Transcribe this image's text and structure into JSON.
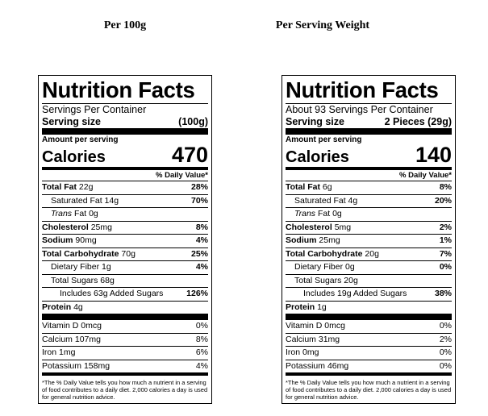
{
  "labels": [
    {
      "heading": "Per 100g",
      "title": "Nutrition Facts",
      "servings": "Servings Per Container",
      "serving_size_label": "Serving size",
      "serving_size": "(100g)",
      "amount_per_serving": "Amount per serving",
      "calories_label": "Calories",
      "calories": "470",
      "dv_header": "% Daily Value*",
      "rows": [
        {
          "name": "Total Fat",
          "amount": "22g",
          "dv": "28%",
          "bold": true,
          "indent": 0
        },
        {
          "name": "Saturated Fat",
          "amount": "14g",
          "dv": "70%",
          "bold": false,
          "indent": 1
        },
        {
          "prefix": "Trans",
          "name": "Fat",
          "amount": "0g",
          "bold": false,
          "indent": 1
        },
        {
          "name": "Cholesterol",
          "amount": "25mg",
          "dv": "8%",
          "bold": true,
          "indent": 0
        },
        {
          "name": "Sodium",
          "amount": "90mg",
          "dv": "4%",
          "bold": true,
          "indent": 0
        },
        {
          "name": "Total Carbohydrate",
          "amount": "70g",
          "dv": "25%",
          "bold": true,
          "indent": 0
        },
        {
          "name": "Dietary Fiber",
          "amount": "1g",
          "dv": "4%",
          "bold": false,
          "indent": 1
        },
        {
          "name": "Total Sugars",
          "amount": "68g",
          "bold": false,
          "indent": 1
        },
        {
          "name": "Includes 63g Added Sugars",
          "dv": "126%",
          "bold": false,
          "indent": 2
        },
        {
          "name": "Protein",
          "amount": "4g",
          "bold": true,
          "indent": 0
        }
      ],
      "vitamins": [
        {
          "name": "Vitamin D",
          "amount": "0mcg",
          "dv": "0%"
        },
        {
          "name": "Calcium",
          "amount": "107mg",
          "dv": "8%"
        },
        {
          "name": "Iron",
          "amount": "1mg",
          "dv": "6%"
        },
        {
          "name": "Potassium",
          "amount": "158mg",
          "dv": "4%"
        }
      ],
      "footnote": "*The % Daily Value tells you how much a nutrient in a serving of food contributes to a daily diet. 2,000 calories a day is used for general nutrition advice."
    },
    {
      "heading": "Per Serving Weight",
      "title": "Nutrition Facts",
      "servings": "About 93 Servings Per Container",
      "serving_size_label": "Serving size",
      "serving_size": "2 Pieces (29g)",
      "amount_per_serving": "Amount per serving",
      "calories_label": "Calories",
      "calories": "140",
      "dv_header": "% Daily Value*",
      "rows": [
        {
          "name": "Total Fat",
          "amount": "6g",
          "dv": "8%",
          "bold": true,
          "indent": 0
        },
        {
          "name": "Saturated Fat",
          "amount": "4g",
          "dv": "20%",
          "bold": false,
          "indent": 1
        },
        {
          "prefix": "Trans",
          "name": "Fat",
          "amount": "0g",
          "bold": false,
          "indent": 1
        },
        {
          "name": "Cholesterol",
          "amount": "5mg",
          "dv": "2%",
          "bold": true,
          "indent": 0
        },
        {
          "name": "Sodium",
          "amount": "25mg",
          "dv": "1%",
          "bold": true,
          "indent": 0
        },
        {
          "name": "Total Carbohydrate",
          "amount": "20g",
          "dv": "7%",
          "bold": true,
          "indent": 0
        },
        {
          "name": "Dietary Fiber",
          "amount": "0g",
          "dv": "0%",
          "bold": false,
          "indent": 1
        },
        {
          "name": "Total Sugars",
          "amount": "20g",
          "bold": false,
          "indent": 1
        },
        {
          "name": "Includes 19g Added Sugars",
          "dv": "38%",
          "bold": false,
          "indent": 2
        },
        {
          "name": "Protein",
          "amount": "1g",
          "bold": true,
          "indent": 0
        }
      ],
      "vitamins": [
        {
          "name": "Vitamin D",
          "amount": "0mcg",
          "dv": "0%"
        },
        {
          "name": "Calcium",
          "amount": "31mg",
          "dv": "2%"
        },
        {
          "name": "Iron",
          "amount": "0mg",
          "dv": "0%"
        },
        {
          "name": "Potassium",
          "amount": "46mg",
          "dv": "0%"
        }
      ],
      "footnote": "*The % Daily Value tells you how much a nutrient in a serving of food contributes to a daily diet. 2,000 calories a day is used for general nutrition advice."
    }
  ]
}
